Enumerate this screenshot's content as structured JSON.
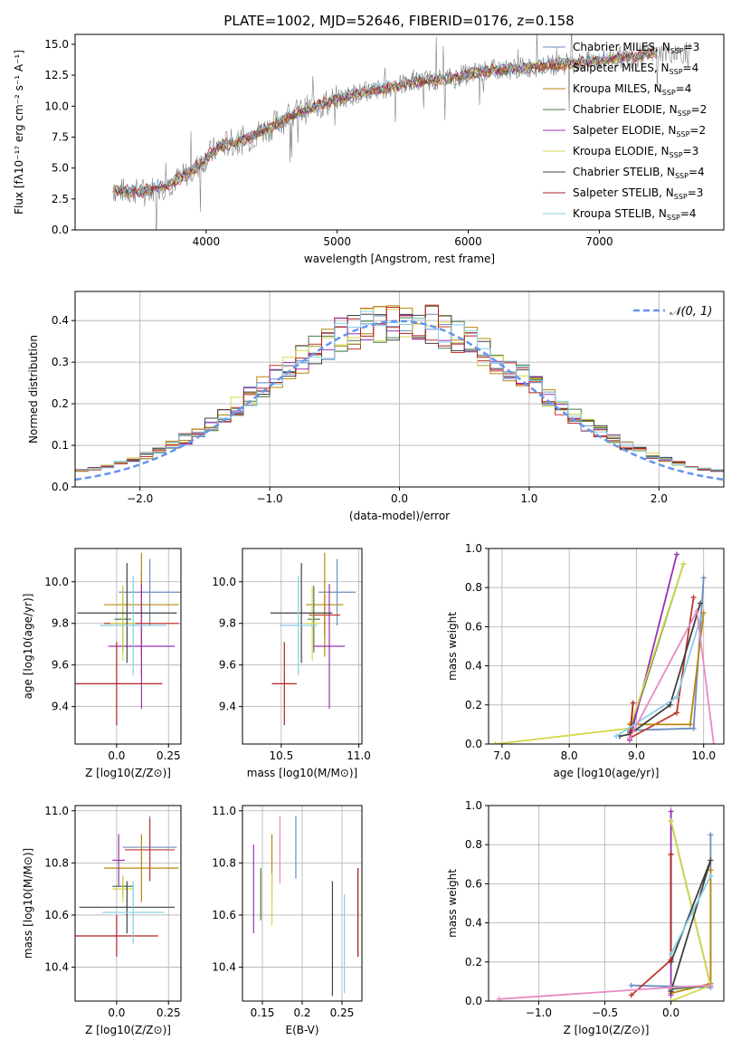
{
  "title": "PLATE=1002, MJD=52646, FIBERID=0176, z=0.158",
  "colors": {
    "Chabrier MILES": "#6c8ebf",
    "Salpeter MILES": "#c0392b",
    "Kroupa MILES": "#b8860b",
    "Chabrier ELODIE": "#4a7a4a",
    "Salpeter ELODIE": "#9b30b0",
    "Kroupa ELODIE": "#d4d84a",
    "Chabrier STELIB": "#404040",
    "Salpeter STELIB": "#b22222",
    "Kroupa STELIB": "#87ceeb",
    "data": "#808080",
    "gauss": "#6495ed"
  },
  "chart_data": [
    {
      "type": "line",
      "panel": "spectrum",
      "xlabel": "wavelength [Angstrom, rest frame]",
      "ylabel": "Flux [fλ10⁻¹⁷ erg cm⁻² s⁻¹ A⁻¹]",
      "xlim": [
        3000,
        7950
      ],
      "ylim": [
        0,
        15.8
      ],
      "xticks": [
        4000,
        5000,
        6000,
        7000
      ],
      "yticks": [
        0.0,
        2.5,
        5.0,
        7.5,
        10.0,
        12.5,
        15.0
      ],
      "legend_placement": "upper right",
      "legend": [
        {
          "label": "Chabrier MILES, N",
          "sub": "SSP",
          "tail": "=3",
          "key": "Chabrier MILES"
        },
        {
          "label": "Salpeter MILES, N",
          "sub": "SSP",
          "tail": "=4",
          "key": "Salpeter MILES"
        },
        {
          "label": "Kroupa MILES, N",
          "sub": "SSP",
          "tail": "=4",
          "key": "Kroupa MILES"
        },
        {
          "label": "Chabrier ELODIE, N",
          "sub": "SSP",
          "tail": "=2",
          "key": "Chabrier ELODIE"
        },
        {
          "label": "Salpeter ELODIE, N",
          "sub": "SSP",
          "tail": "=2",
          "key": "Salpeter ELODIE"
        },
        {
          "label": "Kroupa ELODIE, N",
          "sub": "SSP",
          "tail": "=3",
          "key": "Kroupa ELODIE"
        },
        {
          "label": "Chabrier STELIB, N",
          "sub": "SSP",
          "tail": "=4",
          "key": "Chabrier STELIB"
        },
        {
          "label": "Salpeter STELIB, N",
          "sub": "SSP",
          "tail": "=3",
          "key": "Salpeter STELIB"
        },
        {
          "label": "Kroupa STELIB, N",
          "sub": "SSP",
          "tail": "=4",
          "key": "Kroupa STELIB"
        }
      ],
      "continuum": {
        "x": [
          3300,
          3500,
          3700,
          3900,
          4100,
          4300,
          4500,
          4700,
          4900,
          5100,
          5300,
          5500,
          5700,
          5900,
          6100,
          6300,
          6500,
          6700,
          6900,
          7100,
          7300,
          7400
        ],
        "y": [
          3.2,
          3.1,
          3.6,
          4.8,
          6.8,
          7.3,
          8.4,
          9.5,
          10.2,
          10.9,
          11.3,
          11.8,
          12.1,
          12.3,
          12.8,
          13.0,
          13.2,
          13.4,
          13.6,
          13.9,
          14.0,
          14.3
        ]
      }
    },
    {
      "type": "bar",
      "panel": "residual-histogram",
      "xlabel": "(data-model)/error",
      "ylabel": "Normed distribution",
      "xlim": [
        -2.5,
        2.5
      ],
      "ylim": [
        0,
        0.47
      ],
      "xticks": [
        -2,
        -1,
        0,
        1,
        2
      ],
      "yticks": [
        0.0,
        0.1,
        0.2,
        0.3,
        0.4
      ],
      "legend": "𝒩(0, 1)",
      "bin_width": 0.1,
      "bins_start": -2.5,
      "gaussian": {
        "mean": 0,
        "sigma": 1,
        "name": "N(0,1)"
      }
    },
    {
      "type": "scatter",
      "panel": "age-vs-Z",
      "xlabel": "Z [log10(Z/Z⊙)]",
      "ylabel": "age [log10(age/yr)]",
      "xlim": [
        -0.2,
        0.31
      ],
      "ylim": [
        9.22,
        10.16
      ],
      "xticks": [
        0.0,
        0.25
      ],
      "yticks": [
        9.4,
        9.6,
        9.8,
        10.0
      ],
      "points": [
        {
          "key": "Chabrier MILES",
          "x": 0.16,
          "xerr": 0.15,
          "y": 9.95,
          "yerr": 0.16
        },
        {
          "key": "Salpeter MILES",
          "x": 0.12,
          "xerr": 0.18,
          "y": 9.8,
          "yerr": 0.25
        },
        {
          "key": "Kroupa MILES",
          "x": 0.12,
          "xerr": 0.18,
          "y": 9.89,
          "yerr": 0.25
        },
        {
          "key": "Chabrier ELODIE",
          "x": 0.03,
          "xerr": 0.04,
          "y": 9.82,
          "yerr": 0.16
        },
        {
          "key": "Salpeter ELODIE",
          "x": 0.12,
          "xerr": 0.16,
          "y": 9.69,
          "yerr": 0.3
        },
        {
          "key": "Kroupa ELODIE",
          "x": 0.03,
          "xerr": 0.06,
          "y": 9.8,
          "yerr": 0.18
        },
        {
          "key": "Chabrier STELIB",
          "x": 0.05,
          "xerr": 0.24,
          "y": 9.85,
          "yerr": 0.24
        },
        {
          "key": "Salpeter STELIB",
          "x": 0.0,
          "xerr": 0.22,
          "y": 9.51,
          "yerr": 0.2
        },
        {
          "key": "Kroupa STELIB",
          "x": 0.08,
          "xerr": 0.16,
          "y": 9.79,
          "yerr": 0.24
        }
      ]
    },
    {
      "type": "scatter",
      "panel": "age-vs-mass",
      "xlabel": "mass [log10(M/M⊙)]",
      "ylabel": "",
      "xlim": [
        10.25,
        11.02
      ],
      "ylim": [
        9.22,
        10.16
      ],
      "xticks": [
        10.5,
        11.0
      ],
      "yticks": [
        9.4,
        9.6,
        9.8,
        10.0
      ],
      "points": [
        {
          "key": "Chabrier MILES",
          "x": 10.86,
          "xerr": 0.12,
          "y": 9.95,
          "yerr": 0.16
        },
        {
          "key": "Salpeter MILES",
          "x": 10.78,
          "xerr": 0.1,
          "y": 9.84,
          "yerr": 0.1
        },
        {
          "key": "Kroupa MILES",
          "x": 10.78,
          "xerr": 0.12,
          "y": 9.89,
          "yerr": 0.25
        },
        {
          "key": "Chabrier ELODIE",
          "x": 10.71,
          "xerr": 0.04,
          "y": 9.82,
          "yerr": 0.16
        },
        {
          "key": "Salpeter ELODIE",
          "x": 10.81,
          "xerr": 0.1,
          "y": 9.69,
          "yerr": 0.3
        },
        {
          "key": "Kroupa ELODIE",
          "x": 10.7,
          "xerr": 0.05,
          "y": 9.8,
          "yerr": 0.18
        },
        {
          "key": "Chabrier STELIB",
          "x": 10.63,
          "xerr": 0.2,
          "y": 9.85,
          "yerr": 0.24
        },
        {
          "key": "Salpeter STELIB",
          "x": 10.52,
          "xerr": 0.08,
          "y": 9.51,
          "yerr": 0.2
        },
        {
          "key": "Kroupa STELIB",
          "x": 10.61,
          "xerr": 0.12,
          "y": 9.79,
          "yerr": 0.24
        }
      ]
    },
    {
      "type": "line",
      "panel": "mass-weight-vs-age",
      "xlabel": "age [log10(age/yr)]",
      "ylabel": "mass weight",
      "xlim": [
        6.8,
        10.3
      ],
      "ylim": [
        0,
        1.0
      ],
      "xticks": [
        7,
        8,
        9,
        10
      ],
      "yticks": [
        0.0,
        0.2,
        0.4,
        0.6,
        0.8,
        1.0
      ],
      "grid": true,
      "series": [
        {
          "key": "Chabrier MILES",
          "x": [
            8.9,
            9.85,
            10.0
          ],
          "y": [
            0.07,
            0.08,
            0.85
          ]
        },
        {
          "key": "Salpeter MILES",
          "x": [
            8.9,
            9.6,
            9.85
          ],
          "y": [
            0.03,
            0.16,
            0.75
          ]
        },
        {
          "key": "Kroupa MILES",
          "x": [
            8.9,
            9.8,
            10.0
          ],
          "y": [
            0.1,
            0.1,
            0.67
          ]
        },
        {
          "key": "Chabrier ELODIE",
          "x": [
            8.9,
            9.7
          ],
          "y": [
            0.06,
            0.92
          ]
        },
        {
          "key": "Salpeter ELODIE",
          "x": [
            8.9,
            9.6
          ],
          "y": [
            0.02,
            0.97
          ]
        },
        {
          "key": "Kroupa ELODIE",
          "x": [
            6.9,
            8.9,
            9.7
          ],
          "y": [
            0.0,
            0.08,
            0.92
          ]
        },
        {
          "key": "Chabrier STELIB",
          "x": [
            8.75,
            8.9,
            9.5,
            9.95
          ],
          "y": [
            0.04,
            0.05,
            0.2,
            0.72
          ]
        },
        {
          "key": "Salpeter STELIB",
          "x": [
            8.9,
            8.95
          ],
          "y": [
            0.03,
            0.21
          ]
        },
        {
          "key": "Kroupa STELIB",
          "x": [
            8.7,
            9.6,
            9.95
          ],
          "y": [
            0.04,
            0.24,
            0.64
          ]
        },
        {
          "key": "pink",
          "x": [
            8.9,
            9.9,
            10.15
          ],
          "y": [
            0.03,
            0.68,
            0.0
          ]
        }
      ]
    },
    {
      "type": "scatter",
      "panel": "mass-vs-Z",
      "xlabel": "Z [log10(Z/Z⊙)]",
      "ylabel": "mass [log10(M/M⊙)]",
      "xlim": [
        -0.2,
        0.31
      ],
      "ylim": [
        10.27,
        11.02
      ],
      "xticks": [
        0.0,
        0.25
      ],
      "yticks": [
        10.4,
        10.6,
        10.8,
        11.0
      ],
      "points": [
        {
          "key": "Chabrier MILES",
          "x": 0.16,
          "xerr": 0.13,
          "y": 10.86,
          "yerr": 0.12
        },
        {
          "key": "Salpeter MILES",
          "x": 0.16,
          "xerr": 0.12,
          "y": 10.85,
          "yerr": 0.12
        },
        {
          "key": "Kroupa MILES",
          "x": 0.12,
          "xerr": 0.18,
          "y": 10.78,
          "yerr": 0.13
        },
        {
          "key": "Chabrier ELODIE",
          "x": 0.03,
          "xerr": 0.05,
          "y": 10.71,
          "yerr": 0.04
        },
        {
          "key": "Salpeter ELODIE",
          "x": 0.01,
          "xerr": 0.03,
          "y": 10.81,
          "yerr": 0.1
        },
        {
          "key": "Kroupa ELODIE",
          "x": 0.03,
          "xerr": 0.05,
          "y": 10.7,
          "yerr": 0.05
        },
        {
          "key": "Chabrier STELIB",
          "x": 0.05,
          "xerr": 0.23,
          "y": 10.63,
          "yerr": 0.1
        },
        {
          "key": "Salpeter STELIB",
          "x": 0.0,
          "xerr": 0.2,
          "y": 10.52,
          "yerr": 0.08
        },
        {
          "key": "Kroupa STELIB",
          "x": 0.08,
          "xerr": 0.15,
          "y": 10.61,
          "yerr": 0.12
        }
      ]
    },
    {
      "type": "scatter",
      "panel": "mass-vs-EBV",
      "xlabel": "E(B-V)",
      "ylabel": "",
      "xlim": [
        0.125,
        0.275
      ],
      "ylim": [
        10.27,
        11.02
      ],
      "xticks": [
        0.15,
        0.2,
        0.25
      ],
      "yticks": [
        10.4,
        10.6,
        10.8,
        11.0
      ],
      "points": [
        {
          "key": "Chabrier MILES",
          "x": 0.192,
          "y": 10.86,
          "yerr": 0.12
        },
        {
          "key": "Salpeter MILES",
          "x": 0.27,
          "y": 10.61,
          "yerr": 0.17
        },
        {
          "key": "Kroupa MILES",
          "x": 0.162,
          "y": 10.78,
          "yerr": 0.13
        },
        {
          "key": "Chabrier ELODIE",
          "x": 0.148,
          "y": 10.68,
          "yerr": 0.1
        },
        {
          "key": "Salpeter ELODIE",
          "x": 0.139,
          "y": 10.7,
          "yerr": 0.17
        },
        {
          "key": "Kroupa ELODIE",
          "x": 0.162,
          "y": 10.66,
          "yerr": 0.1
        },
        {
          "key": "Chabrier STELIB",
          "x": 0.238,
          "y": 10.51,
          "yerr": 0.22
        },
        {
          "key": "Salpeter STELIB",
          "x": 0.27,
          "y": 10.61,
          "yerr": 0.17
        },
        {
          "key": "Kroupa STELIB",
          "x": 0.253,
          "y": 10.49,
          "yerr": 0.19
        },
        {
          "key": "pink",
          "x": 0.172,
          "y": 10.85,
          "yerr": 0.13
        }
      ]
    },
    {
      "type": "line",
      "panel": "mass-weight-vs-Z",
      "xlabel": "Z [log10(Z/Z⊙)]",
      "ylabel": "mass weight",
      "xlim": [
        -1.38,
        0.4
      ],
      "ylim": [
        0,
        1.0
      ],
      "xticks": [
        -1.0,
        -0.5,
        0.0
      ],
      "yticks": [
        0.0,
        0.2,
        0.4,
        0.6,
        0.8,
        1.0
      ],
      "grid": true,
      "series": [
        {
          "key": "Chabrier MILES",
          "x": [
            -0.3,
            0.3,
            0.3
          ],
          "y": [
            0.08,
            0.07,
            0.85
          ]
        },
        {
          "key": "Salpeter MILES",
          "x": [
            -0.3,
            0.0,
            0.0
          ],
          "y": [
            0.03,
            0.21,
            0.75
          ]
        },
        {
          "key": "Kroupa MILES",
          "x": [
            0.0,
            0.3,
            0.3
          ],
          "y": [
            0.04,
            0.09,
            0.67
          ]
        },
        {
          "key": "Chabrier ELODIE",
          "x": [
            0.0,
            0.3,
            0.0
          ],
          "y": [
            0.92,
            0.08,
            0.06
          ]
        },
        {
          "key": "Salpeter ELODIE",
          "x": [
            0.0,
            0.0
          ],
          "y": [
            0.03,
            0.97
          ]
        },
        {
          "key": "Kroupa ELODIE",
          "x": [
            0.0,
            0.3,
            0.0
          ],
          "y": [
            0.0,
            0.08,
            0.92
          ]
        },
        {
          "key": "Chabrier STELIB",
          "x": [
            0.0,
            0.3,
            0.0
          ],
          "y": [
            0.2,
            0.72,
            0.05
          ]
        },
        {
          "key": "Salpeter STELIB",
          "x": [
            0.0,
            0.0
          ],
          "y": [
            0.21,
            0.75
          ]
        },
        {
          "key": "Kroupa STELIB",
          "x": [
            0.0,
            0.3
          ],
          "y": [
            0.24,
            0.64
          ]
        },
        {
          "key": "pink",
          "x": [
            -1.3,
            0.0,
            0.3
          ],
          "y": [
            0.01,
            0.07,
            0.08
          ]
        }
      ]
    }
  ]
}
